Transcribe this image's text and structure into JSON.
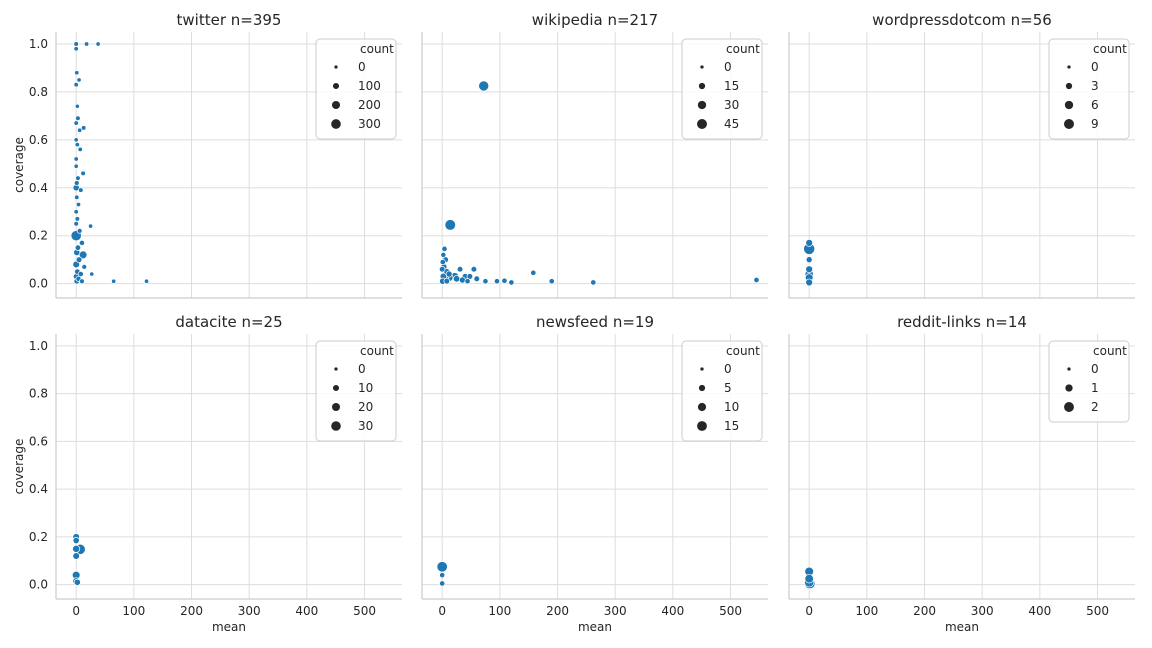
{
  "figure": {
    "x_axis_label": "mean",
    "y_axis_label": "coverage",
    "x_ticks": [
      0,
      100,
      200,
      300,
      400,
      500
    ],
    "y_ticks": [
      "0.0",
      "0.2",
      "0.4",
      "0.6",
      "0.8",
      "1.0"
    ],
    "point_color": "#1f77b4",
    "legend_marker_color": "#262626",
    "grid_color": "#dddddd"
  },
  "chart_data": [
    {
      "type": "scatter",
      "title": "twitter n=395",
      "xlabel": "",
      "ylabel": "coverage",
      "xlim": [
        -35,
        565
      ],
      "ylim": [
        -0.06,
        1.05
      ],
      "grid": true,
      "legend_position": "top-right",
      "legend": {
        "title": "count",
        "labels": [
          "0",
          "100",
          "200",
          "300"
        ]
      },
      "size_range": [
        0,
        395
      ],
      "points": [
        {
          "x": 0,
          "y": 1.0,
          "count": 20
        },
        {
          "x": 18,
          "y": 1.0,
          "count": 15
        },
        {
          "x": 38,
          "y": 1.0,
          "count": 10
        },
        {
          "x": 0,
          "y": 0.98,
          "count": 15
        },
        {
          "x": 1,
          "y": 0.88,
          "count": 12
        },
        {
          "x": 5,
          "y": 0.85,
          "count": 10
        },
        {
          "x": 0,
          "y": 0.83,
          "count": 15
        },
        {
          "x": 2,
          "y": 0.74,
          "count": 8
        },
        {
          "x": 3,
          "y": 0.69,
          "count": 20
        },
        {
          "x": 0,
          "y": 0.67,
          "count": 15
        },
        {
          "x": 13,
          "y": 0.65,
          "count": 18
        },
        {
          "x": 6,
          "y": 0.64,
          "count": 12
        },
        {
          "x": 0,
          "y": 0.6,
          "count": 10
        },
        {
          "x": 2,
          "y": 0.58,
          "count": 15
        },
        {
          "x": 7,
          "y": 0.56,
          "count": 15
        },
        {
          "x": 0,
          "y": 0.52,
          "count": 12
        },
        {
          "x": 0,
          "y": 0.49,
          "count": 10
        },
        {
          "x": 12,
          "y": 0.46,
          "count": 20
        },
        {
          "x": 3,
          "y": 0.44,
          "count": 25
        },
        {
          "x": 1,
          "y": 0.42,
          "count": 30
        },
        {
          "x": 0,
          "y": 0.4,
          "count": 80
        },
        {
          "x": 8,
          "y": 0.39,
          "count": 20
        },
        {
          "x": 1,
          "y": 0.36,
          "count": 15
        },
        {
          "x": 4,
          "y": 0.33,
          "count": 12
        },
        {
          "x": 0,
          "y": 0.3,
          "count": 15
        },
        {
          "x": 2,
          "y": 0.27,
          "count": 20
        },
        {
          "x": 0,
          "y": 0.25,
          "count": 20
        },
        {
          "x": 25,
          "y": 0.24,
          "count": 10
        },
        {
          "x": 6,
          "y": 0.22,
          "count": 30
        },
        {
          "x": 0,
          "y": 0.2,
          "count": 300
        },
        {
          "x": 10,
          "y": 0.17,
          "count": 40
        },
        {
          "x": 3,
          "y": 0.15,
          "count": 50
        },
        {
          "x": 1,
          "y": 0.13,
          "count": 80
        },
        {
          "x": 12,
          "y": 0.12,
          "count": 150
        },
        {
          "x": 5,
          "y": 0.1,
          "count": 60
        },
        {
          "x": 0,
          "y": 0.08,
          "count": 100
        },
        {
          "x": 14,
          "y": 0.07,
          "count": 30
        },
        {
          "x": 2,
          "y": 0.05,
          "count": 50
        },
        {
          "x": 8,
          "y": 0.04,
          "count": 40
        },
        {
          "x": 27,
          "y": 0.04,
          "count": 10
        },
        {
          "x": 0,
          "y": 0.03,
          "count": 60
        },
        {
          "x": 4,
          "y": 0.02,
          "count": 40
        },
        {
          "x": 10,
          "y": 0.01,
          "count": 30
        },
        {
          "x": 1,
          "y": 0.01,
          "count": 50
        },
        {
          "x": 65,
          "y": 0.01,
          "count": 10
        },
        {
          "x": 122,
          "y": 0.01,
          "count": 10
        }
      ]
    },
    {
      "type": "scatter",
      "title": "wikipedia n=217",
      "xlabel": "",
      "ylabel": "",
      "xlim": [
        -35,
        565
      ],
      "ylim": [
        -0.06,
        1.05
      ],
      "grid": true,
      "legend_position": "top-right",
      "legend": {
        "title": "count",
        "labels": [
          "0",
          "15",
          "30",
          "45"
        ]
      },
      "size_range": [
        0,
        55
      ],
      "points": [
        {
          "x": 72,
          "y": 0.825,
          "count": 40
        },
        {
          "x": 14,
          "y": 0.245,
          "count": 45
        },
        {
          "x": 4,
          "y": 0.145,
          "count": 6
        },
        {
          "x": 2,
          "y": 0.12,
          "count": 5
        },
        {
          "x": 6,
          "y": 0.1,
          "count": 8
        },
        {
          "x": 1,
          "y": 0.09,
          "count": 6
        },
        {
          "x": 3,
          "y": 0.07,
          "count": 10
        },
        {
          "x": 0,
          "y": 0.06,
          "count": 8
        },
        {
          "x": 8,
          "y": 0.05,
          "count": 10
        },
        {
          "x": 31,
          "y": 0.06,
          "count": 8
        },
        {
          "x": 55,
          "y": 0.06,
          "count": 8
        },
        {
          "x": 12,
          "y": 0.04,
          "count": 10
        },
        {
          "x": 2,
          "y": 0.03,
          "count": 12
        },
        {
          "x": 22,
          "y": 0.03,
          "count": 20
        },
        {
          "x": 40,
          "y": 0.03,
          "count": 10
        },
        {
          "x": 48,
          "y": 0.03,
          "count": 8
        },
        {
          "x": 5,
          "y": 0.02,
          "count": 15
        },
        {
          "x": 12,
          "y": 0.025,
          "count": 20
        },
        {
          "x": 25,
          "y": 0.02,
          "count": 12
        },
        {
          "x": 35,
          "y": 0.015,
          "count": 10
        },
        {
          "x": 60,
          "y": 0.02,
          "count": 8
        },
        {
          "x": 1,
          "y": 0.01,
          "count": 12
        },
        {
          "x": 8,
          "y": 0.01,
          "count": 8
        },
        {
          "x": 44,
          "y": 0.01,
          "count": 6
        },
        {
          "x": 75,
          "y": 0.01,
          "count": 6
        },
        {
          "x": 95,
          "y": 0.01,
          "count": 6
        },
        {
          "x": 108,
          "y": 0.012,
          "count": 6
        },
        {
          "x": 120,
          "y": 0.005,
          "count": 6
        },
        {
          "x": 158,
          "y": 0.045,
          "count": 6
        },
        {
          "x": 190,
          "y": 0.01,
          "count": 6
        },
        {
          "x": 262,
          "y": 0.005,
          "count": 6
        },
        {
          "x": 545,
          "y": 0.015,
          "count": 6
        }
      ]
    },
    {
      "type": "scatter",
      "title": "wordpressdotcom n=56",
      "xlabel": "",
      "ylabel": "",
      "xlim": [
        -35,
        565
      ],
      "ylim": [
        -0.06,
        1.05
      ],
      "grid": true,
      "legend_position": "top-right",
      "legend": {
        "title": "count",
        "labels": [
          "0",
          "3",
          "6",
          "9"
        ]
      },
      "size_range": [
        0,
        11
      ],
      "points": [
        {
          "x": 0,
          "y": 0.17,
          "count": 3
        },
        {
          "x": 0,
          "y": 0.145,
          "count": 10
        },
        {
          "x": 0,
          "y": 0.1,
          "count": 2
        },
        {
          "x": 0,
          "y": 0.06,
          "count": 3
        },
        {
          "x": 0,
          "y": 0.04,
          "count": 5
        },
        {
          "x": 0,
          "y": 0.025,
          "count": 4
        },
        {
          "x": 0,
          "y": 0.005,
          "count": 3
        }
      ]
    },
    {
      "type": "scatter",
      "title": "datacite n=25",
      "xlabel": "mean",
      "ylabel": "coverage",
      "xlim": [
        -35,
        565
      ],
      "ylim": [
        -0.06,
        1.05
      ],
      "grid": true,
      "legend_position": "top-right",
      "legend": {
        "title": "count",
        "labels": [
          "0",
          "10",
          "20",
          "30"
        ]
      },
      "size_range": [
        0,
        40
      ],
      "points": [
        {
          "x": 0,
          "y": 0.2,
          "count": 10
        },
        {
          "x": 0,
          "y": 0.185,
          "count": 8
        },
        {
          "x": 0,
          "y": 0.15,
          "count": 12
        },
        {
          "x": 7,
          "y": 0.148,
          "count": 30
        },
        {
          "x": 0,
          "y": 0.12,
          "count": 10
        },
        {
          "x": 0,
          "y": 0.04,
          "count": 15
        },
        {
          "x": 0,
          "y": 0.015,
          "count": 10
        },
        {
          "x": 2,
          "y": 0.01,
          "count": 8
        }
      ]
    },
    {
      "type": "scatter",
      "title": "newsfeed n=19",
      "xlabel": "mean",
      "ylabel": "",
      "xlim": [
        -35,
        565
      ],
      "ylim": [
        -0.06,
        1.05
      ],
      "grid": true,
      "legend_position": "top-right",
      "legend": {
        "title": "count",
        "labels": [
          "0",
          "5",
          "10",
          "15"
        ]
      },
      "size_range": [
        0,
        19
      ],
      "points": [
        {
          "x": 0,
          "y": 0.075,
          "count": 15
        },
        {
          "x": 0,
          "y": 0.04,
          "count": 2
        },
        {
          "x": 0,
          "y": 0.005,
          "count": 2
        }
      ]
    },
    {
      "type": "scatter",
      "title": "reddit-links n=14",
      "xlabel": "mean",
      "ylabel": "",
      "xlim": [
        -35,
        565
      ],
      "ylim": [
        -0.06,
        1.05
      ],
      "grid": true,
      "legend_position": "top-right",
      "legend": {
        "title": "count",
        "labels": [
          "0",
          "1",
          "2"
        ]
      },
      "size_range": [
        0,
        2.5
      ],
      "points": [
        {
          "x": 0,
          "y": 0.055,
          "count": 1.3
        },
        {
          "x": 0,
          "y": 0.025,
          "count": 1.2
        },
        {
          "x": 0,
          "y": 0.01,
          "count": 1.5
        },
        {
          "x": 1,
          "y": 0.005,
          "count": 2
        }
      ]
    }
  ]
}
